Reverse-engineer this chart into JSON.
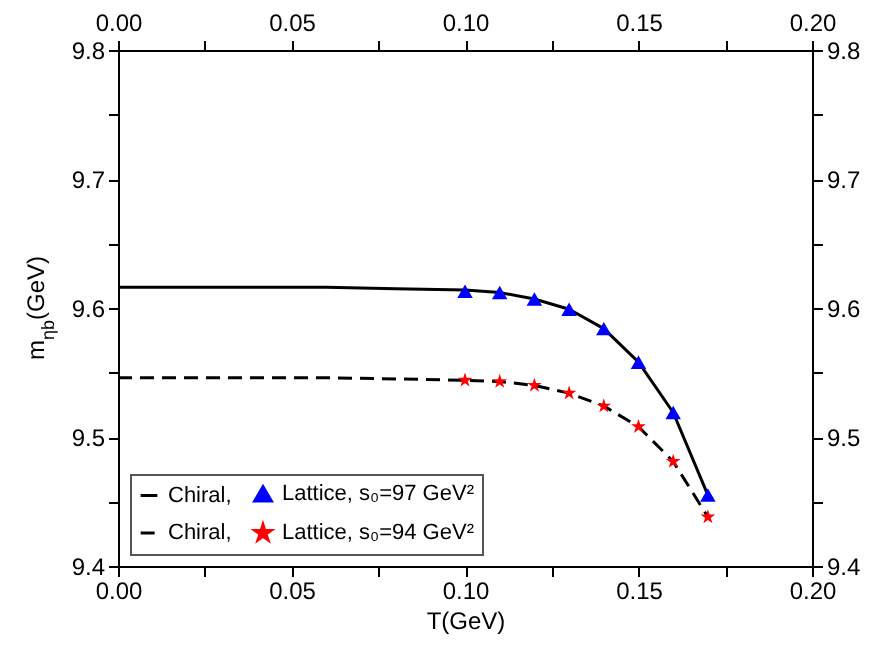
{
  "chart_data": {
    "type": "line",
    "xlabel": "T(GeV)",
    "ylabel": "m$_{ηb}$(GeV)",
    "xlim": [
      0,
      0.2
    ],
    "xticks": [
      {
        "value": 0,
        "label": "0.00"
      },
      {
        "value": 0.025,
        "label": null
      },
      0.05,
      {
        "value": 0.075,
        "label": null
      },
      {
        "value": 0.1,
        "label": "0.10"
      },
      {
        "value": 0.125,
        "label": null
      },
      0.15,
      {
        "value": 0.175,
        "label": null
      },
      {
        "value": 0.2,
        "label": "0.20"
      }
    ],
    "x2lim": [
      0,
      0.2
    ],
    "x2ticks": [
      {
        "value": 0,
        "label": "0.00"
      },
      {
        "value": 0.025,
        "label": null
      },
      0.05,
      {
        "value": 0.075,
        "label": null
      },
      {
        "value": 0.1,
        "label": "0.10"
      },
      {
        "value": 0.125,
        "label": null
      },
      0.15,
      {
        "value": 0.175,
        "label": null
      },
      {
        "value": 0.2,
        "label": "0.20"
      }
    ],
    "ylim": [
      9.4,
      9.8
    ],
    "yticks": [
      9.4,
      {
        "value": 9.45,
        "label": null
      },
      9.5,
      {
        "value": 9.55,
        "label": null
      },
      9.6,
      {
        "value": 9.65,
        "label": null
      },
      9.7,
      {
        "value": 9.75,
        "label": null
      },
      9.8
    ],
    "y2lim": [
      9.4,
      9.8
    ],
    "y2ticks": [
      9.4,
      {
        "value": 9.45,
        "label": null
      },
      9.5,
      {
        "value": 9.55,
        "label": null
      },
      9.6,
      {
        "value": 9.65,
        "label": null
      },
      9.7,
      {
        "value": 9.75,
        "label": null
      },
      9.8
    ],
    "legend": "bottom left",
    "grid": false,
    "series": [
      {
        "name": "Chiral,",
        "color": "#000000",
        "line_style": "solid",
        "marker": "none",
        "x": [
          0,
          0.02,
          0.04,
          0.06,
          0.08,
          0.1,
          0.11,
          0.12,
          0.13,
          0.14,
          0.15,
          0.16,
          0.17
        ],
        "values": [
          9.616,
          9.616,
          9.616,
          9.616,
          9.615,
          9.614,
          9.612,
          9.607,
          9.599,
          9.584,
          9.558,
          9.519,
          9.455
        ]
      },
      {
        "name": "Lattice, s₀=97 GeV²",
        "type": "scatter",
        "color": "#0000ff",
        "marker": "triangle",
        "x": [
          0.1,
          0.11,
          0.12,
          0.13,
          0.14,
          0.15,
          0.16,
          0.17
        ],
        "values": [
          9.613,
          9.612,
          9.607,
          9.599,
          9.584,
          9.558,
          9.519,
          9.455
        ]
      },
      {
        "name": "Chiral,",
        "color": "#000000",
        "line_style": "dashed",
        "marker": "none",
        "x": [
          0,
          0.02,
          0.04,
          0.06,
          0.08,
          0.1,
          0.11,
          0.12,
          0.13,
          0.14,
          0.15,
          0.16,
          0.17
        ],
        "values": [
          9.546,
          9.546,
          9.546,
          9.546,
          9.545,
          9.544,
          9.543,
          9.54,
          9.534,
          9.524,
          9.508,
          9.481,
          9.438
        ]
      },
      {
        "name": "Lattice, s₀=94 GeV²",
        "type": "scatter",
        "color": "#ff0000",
        "marker": "star",
        "x": [
          0.1,
          0.11,
          0.12,
          0.13,
          0.14,
          0.15,
          0.16,
          0.17
        ],
        "values": [
          9.544,
          9.543,
          9.54,
          9.534,
          9.524,
          9.508,
          9.481,
          9.438
        ]
      }
    ]
  }
}
